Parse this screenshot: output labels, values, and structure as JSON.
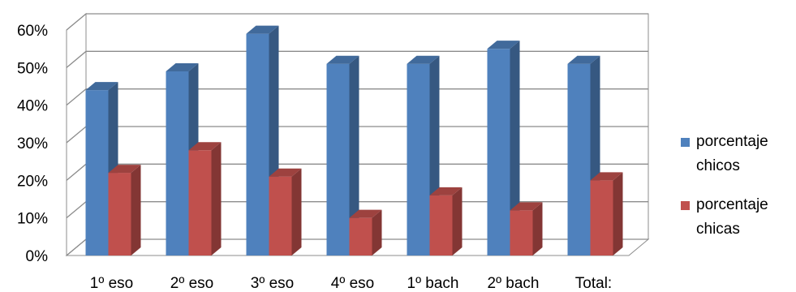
{
  "chart_data": {
    "type": "bar",
    "title": "",
    "xlabel": "",
    "ylabel": "",
    "categories": [
      "1º eso",
      "2º eso",
      "3º eso",
      "4º eso",
      "1º bach",
      "2º bach",
      "Total:"
    ],
    "series": [
      {
        "name": "porcentaje chicos",
        "color": "#4F81BD",
        "values": [
          44,
          49,
          59,
          51,
          51,
          55,
          51
        ]
      },
      {
        "name": "porcentaje chicas",
        "color": "#C0504D",
        "values": [
          22,
          28,
          21,
          10,
          16,
          12,
          20
        ]
      }
    ],
    "ylim": [
      0,
      60
    ],
    "y_ticks": [
      "0%",
      "10%",
      "20%",
      "30%",
      "40%",
      "50%",
      "60%"
    ],
    "grid": true,
    "legend_position": "right",
    "style": "3d-clustered-column"
  }
}
